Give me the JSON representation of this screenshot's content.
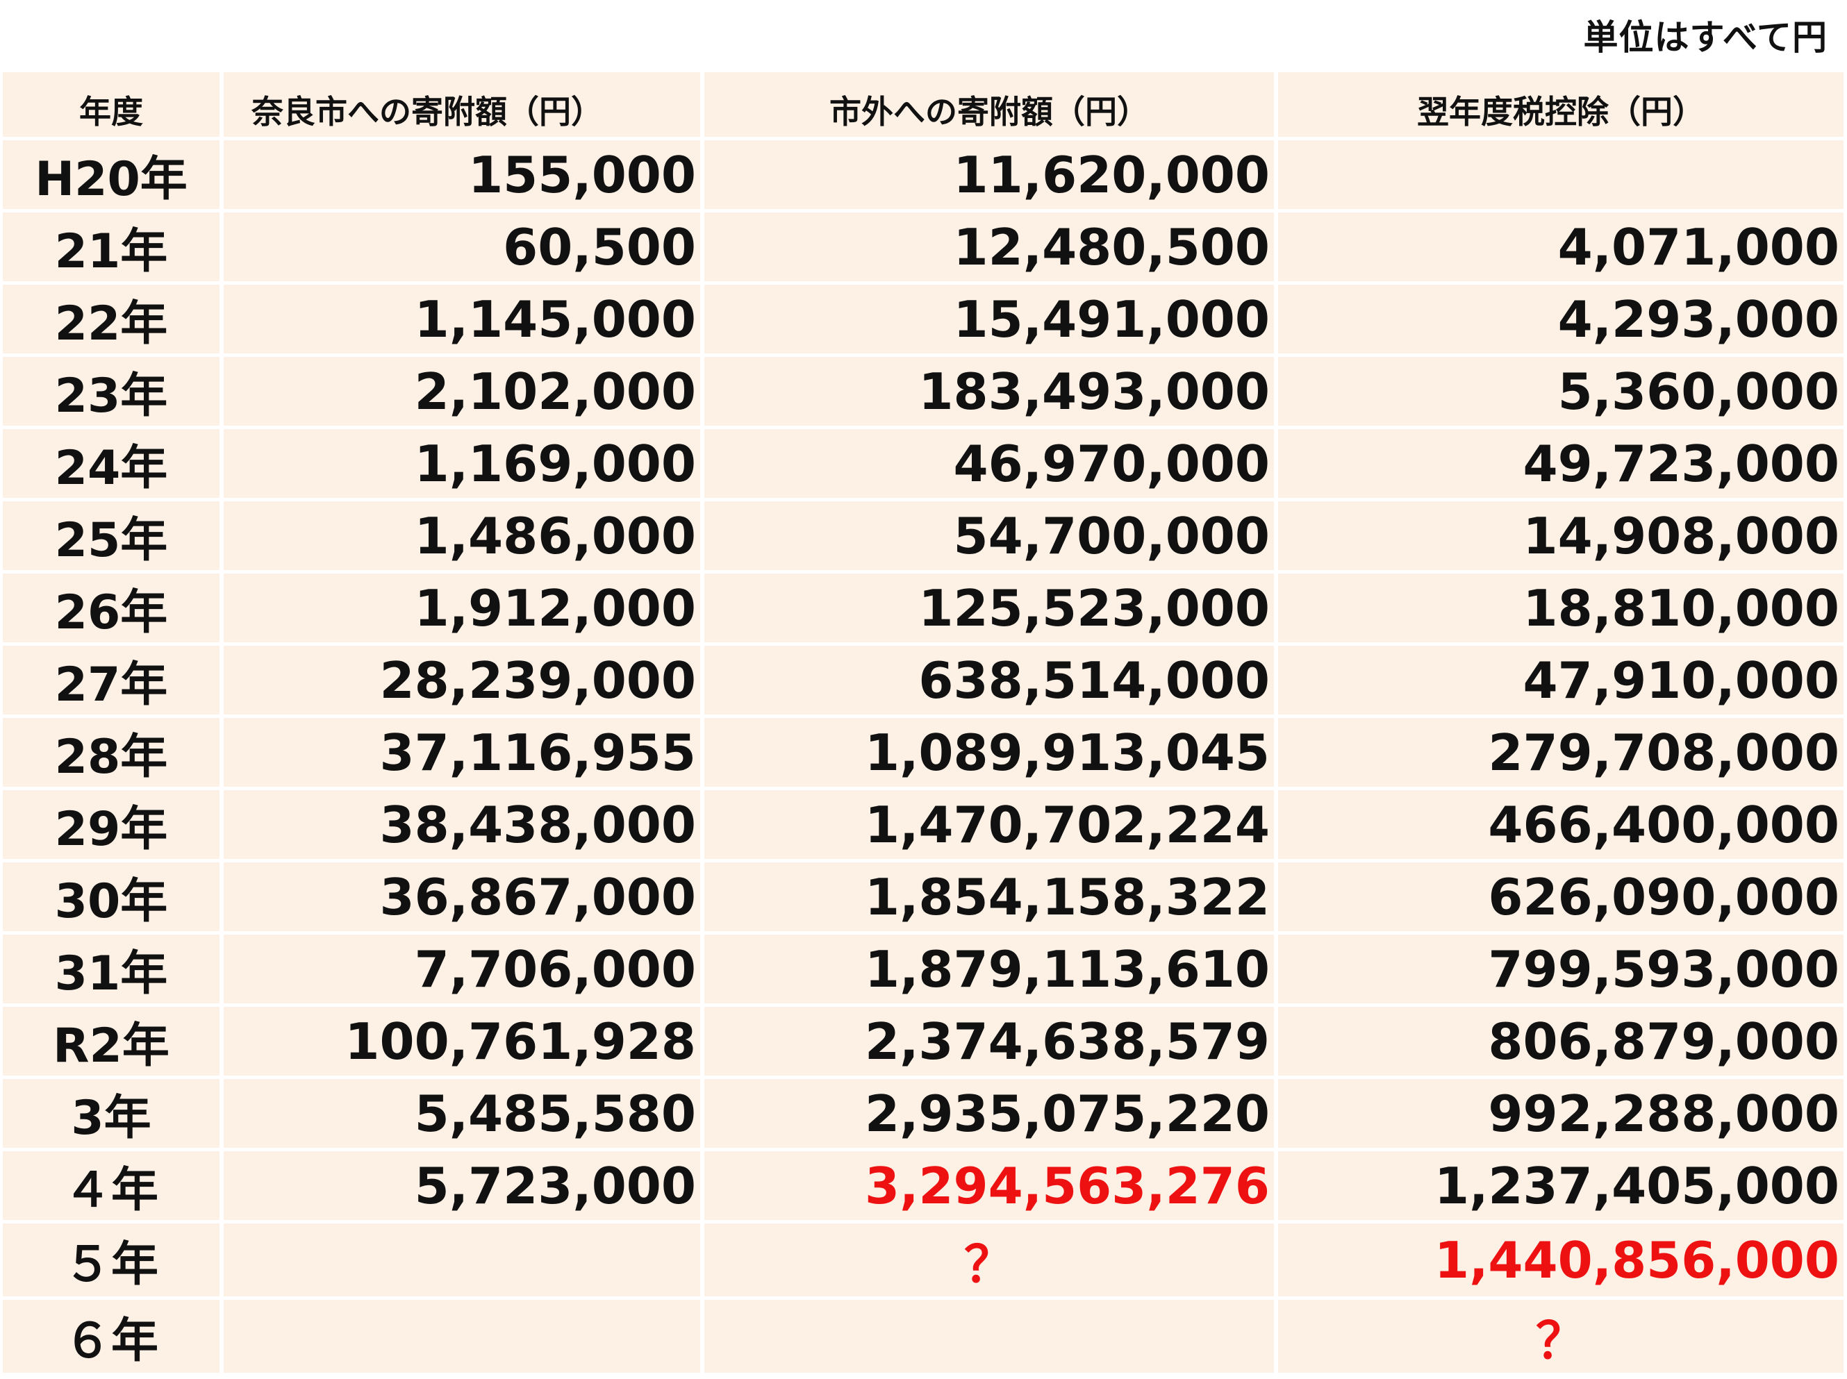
{
  "unit_note": "単位はすべて円",
  "headers": {
    "year": "年度",
    "nara": "奈良市への寄附額（円）",
    "outside": "市外への寄附額（円）",
    "tax": "翌年度税控除（円）"
  },
  "rows": [
    {
      "year": "H20年",
      "nara": "155,000",
      "outside": "11,620,000",
      "tax": ""
    },
    {
      "year": "21年",
      "nara": "60,500",
      "outside": "12,480,500",
      "tax": "4,071,000"
    },
    {
      "year": "22年",
      "nara": "1,145,000",
      "outside": "15,491,000",
      "tax": "4,293,000"
    },
    {
      "year": "23年",
      "nara": "2,102,000",
      "outside": "183,493,000",
      "tax": "5,360,000"
    },
    {
      "year": "24年",
      "nara": "1,169,000",
      "outside": "46,970,000",
      "tax": "49,723,000"
    },
    {
      "year": "25年",
      "nara": "1,486,000",
      "outside": "54,700,000",
      "tax": "14,908,000"
    },
    {
      "year": "26年",
      "nara": "1,912,000",
      "outside": "125,523,000",
      "tax": "18,810,000"
    },
    {
      "year": "27年",
      "nara": "28,239,000",
      "outside": "638,514,000",
      "tax": "47,910,000"
    },
    {
      "year": "28年",
      "nara": "37,116,955",
      "outside": "1,089,913,045",
      "tax": "279,708,000"
    },
    {
      "year": "29年",
      "nara": "38,438,000",
      "outside": "1,470,702,224",
      "tax": "466,400,000"
    },
    {
      "year": "30年",
      "nara": "36,867,000",
      "outside": "1,854,158,322",
      "tax": "626,090,000"
    },
    {
      "year": "31年",
      "nara": "7,706,000",
      "outside": "1,879,113,610",
      "tax": "799,593,000"
    },
    {
      "year": "R2年",
      "nara": "100,761,928",
      "outside": "2,374,638,579",
      "tax": "806,879,000"
    },
    {
      "year": "3年",
      "nara": "5,485,580",
      "outside": "2,935,075,220",
      "tax": "992,288,000"
    },
    {
      "year": "４年",
      "nara": "5,723,000",
      "outside": "3,294,563,276",
      "tax": "1,237,405,000"
    },
    {
      "year": "５年",
      "nara": "",
      "outside": "？",
      "tax": "1,440,856,000"
    },
    {
      "year": "６年",
      "nara": "",
      "outside": "",
      "tax": "？"
    }
  ],
  "colors": {
    "cell_background": "#fdf1e6",
    "highlight_red": "#ee1111"
  }
}
